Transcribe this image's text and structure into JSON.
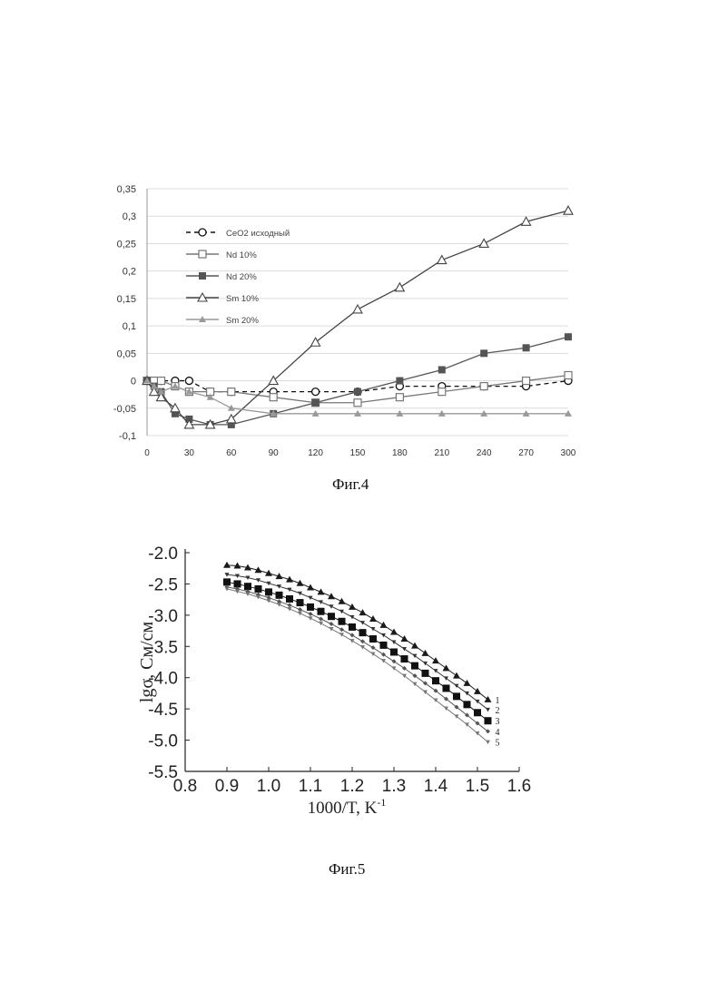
{
  "chart_data": [
    {
      "type": "line",
      "caption": "Фиг.4",
      "x": [
        0,
        5,
        10,
        20,
        30,
        45,
        60,
        90,
        120,
        150,
        180,
        210,
        240,
        270,
        300
      ],
      "x_ticks": [
        "0",
        "30",
        "60",
        "90",
        "120",
        "150",
        "180",
        "210",
        "240",
        "270",
        "300"
      ],
      "x_tick_values": [
        0,
        30,
        60,
        90,
        120,
        150,
        180,
        210,
        240,
        270,
        300
      ],
      "y_ticks": [
        "0,35",
        "0,3",
        "0,25",
        "0,2",
        "0,15",
        "0,1",
        "0,05",
        "0",
        "-0,05",
        "-0,1"
      ],
      "y_tick_values": [
        0.35,
        0.3,
        0.25,
        0.2,
        0.15,
        0.1,
        0.05,
        0,
        -0.05,
        -0.1
      ],
      "xlim": [
        0,
        300
      ],
      "ylim": [
        -0.1,
        0.35
      ],
      "grid": "horizontal",
      "legend_position": "top-left",
      "series": [
        {
          "name": "CeO2 исходный",
          "color": "#111111",
          "dashed": true,
          "marker": "circle-open",
          "x": [
            0,
            5,
            10,
            20,
            30,
            45,
            60,
            90,
            120,
            150,
            180,
            210,
            240,
            270,
            300
          ],
          "values": [
            0,
            0,
            0,
            0,
            0,
            -0.02,
            -0.02,
            -0.02,
            -0.02,
            -0.02,
            -0.01,
            -0.01,
            -0.01,
            -0.01,
            0
          ]
        },
        {
          "name": "Nd 10%",
          "color": "#777777",
          "dashed": false,
          "marker": "square-open",
          "x": [
            0,
            5,
            10,
            20,
            30,
            45,
            60,
            90,
            120,
            150,
            180,
            210,
            240,
            270,
            300
          ],
          "values": [
            0,
            0,
            0,
            -0.01,
            -0.02,
            -0.02,
            -0.02,
            -0.03,
            -0.04,
            -0.04,
            -0.03,
            -0.02,
            -0.01,
            0,
            0.01
          ]
        },
        {
          "name": "Nd 20%",
          "color": "#555555",
          "dashed": false,
          "marker": "square-filled",
          "x": [
            0,
            5,
            10,
            20,
            30,
            45,
            60,
            90,
            120,
            150,
            180,
            210,
            240,
            270,
            300
          ],
          "values": [
            0,
            -0.01,
            -0.02,
            -0.06,
            -0.07,
            -0.08,
            -0.08,
            -0.06,
            -0.04,
            -0.02,
            0,
            0.02,
            0.05,
            0.06,
            0.08
          ]
        },
        {
          "name": "Sm 10%",
          "color": "#444444",
          "dashed": false,
          "marker": "triangle-open",
          "x": [
            0,
            5,
            10,
            20,
            30,
            45,
            60,
            90,
            120,
            150,
            180,
            210,
            240,
            270,
            300
          ],
          "values": [
            0,
            -0.02,
            -0.03,
            -0.05,
            -0.08,
            -0.08,
            -0.07,
            0,
            0.07,
            0.13,
            0.17,
            0.22,
            0.25,
            0.29,
            0.31
          ]
        },
        {
          "name": "Sm 20%",
          "color": "#999999",
          "dashed": false,
          "marker": "triangle-filled",
          "x": [
            0,
            5,
            10,
            20,
            30,
            45,
            60,
            90,
            120,
            150,
            180,
            210,
            240,
            270,
            300
          ],
          "values": [
            0,
            -0.01,
            -0.02,
            -0.01,
            -0.02,
            -0.03,
            -0.05,
            -0.06,
            -0.06,
            -0.06,
            -0.06,
            -0.06,
            -0.06,
            -0.06,
            -0.06
          ]
        }
      ]
    },
    {
      "type": "line",
      "caption": "Фиг.5",
      "xlabel": "1000/T, K",
      "xlabel_sup": "-1",
      "ylabel": "lgσ, См/см",
      "x_ticks": [
        "0.8",
        "0.9",
        "1.0",
        "1.1",
        "1.2",
        "1.3",
        "1.4",
        "1.5",
        "1.6"
      ],
      "x_tick_values": [
        0.8,
        0.9,
        1.0,
        1.1,
        1.2,
        1.3,
        1.4,
        1.5,
        1.6
      ],
      "y_ticks": [
        "-2.0",
        "-2.5",
        "-3.0",
        "-3.5",
        "-4.0",
        "-4.5",
        "-5.0",
        "-5.5"
      ],
      "y_tick_values": [
        -2.0,
        -2.5,
        -3.0,
        -3.5,
        -4.0,
        -4.5,
        -5.0,
        -5.5
      ],
      "xlim": [
        0.8,
        1.6
      ],
      "ylim": [
        -5.5,
        -2.0
      ],
      "series": [
        {
          "name": "1",
          "color": "#1a1a1a",
          "marker": "triangle-filled",
          "x": [
            0.9,
            0.925,
            0.95,
            0.975,
            1.0,
            1.025,
            1.05,
            1.075,
            1.1,
            1.125,
            1.15,
            1.175,
            1.2,
            1.225,
            1.25,
            1.275,
            1.3,
            1.325,
            1.35,
            1.375,
            1.4,
            1.425,
            1.45,
            1.475,
            1.5,
            1.525
          ],
          "values": [
            -2.2,
            -2.21,
            -2.24,
            -2.28,
            -2.33,
            -2.38,
            -2.43,
            -2.49,
            -2.56,
            -2.63,
            -2.7,
            -2.78,
            -2.87,
            -2.96,
            -3.06,
            -3.16,
            -3.27,
            -3.38,
            -3.49,
            -3.61,
            -3.73,
            -3.85,
            -3.97,
            -4.09,
            -4.22,
            -4.35
          ]
        },
        {
          "name": "2",
          "color": "#333333",
          "marker": "triangle-down-filled",
          "x": [
            0.9,
            0.925,
            0.95,
            0.975,
            1.0,
            1.025,
            1.05,
            1.075,
            1.1,
            1.125,
            1.15,
            1.175,
            1.2,
            1.225,
            1.25,
            1.275,
            1.3,
            1.325,
            1.35,
            1.375,
            1.4,
            1.425,
            1.45,
            1.475,
            1.5,
            1.525
          ],
          "values": [
            -2.35,
            -2.37,
            -2.4,
            -2.44,
            -2.49,
            -2.54,
            -2.59,
            -2.65,
            -2.72,
            -2.79,
            -2.86,
            -2.94,
            -3.03,
            -3.12,
            -3.22,
            -3.32,
            -3.43,
            -3.54,
            -3.65,
            -3.77,
            -3.89,
            -4.01,
            -4.13,
            -4.25,
            -4.38,
            -4.51
          ]
        },
        {
          "name": "3",
          "color": "#111111",
          "marker": "square-filled",
          "x": [
            0.9,
            0.925,
            0.95,
            0.975,
            1.0,
            1.025,
            1.05,
            1.075,
            1.1,
            1.125,
            1.15,
            1.175,
            1.2,
            1.225,
            1.25,
            1.275,
            1.3,
            1.325,
            1.35,
            1.375,
            1.4,
            1.425,
            1.45,
            1.475,
            1.5,
            1.525
          ],
          "values": [
            -2.47,
            -2.5,
            -2.54,
            -2.58,
            -2.63,
            -2.68,
            -2.74,
            -2.8,
            -2.87,
            -2.94,
            -3.02,
            -3.1,
            -3.19,
            -3.28,
            -3.38,
            -3.48,
            -3.59,
            -3.7,
            -3.81,
            -3.93,
            -4.05,
            -4.17,
            -4.3,
            -4.43,
            -4.56,
            -4.69
          ]
        },
        {
          "name": "4",
          "color": "#555555",
          "marker": "diamond-filled",
          "x": [
            0.9,
            0.925,
            0.95,
            0.975,
            1.0,
            1.025,
            1.05,
            1.075,
            1.1,
            1.125,
            1.15,
            1.175,
            1.2,
            1.225,
            1.25,
            1.275,
            1.3,
            1.325,
            1.35,
            1.375,
            1.4,
            1.425,
            1.45,
            1.475,
            1.5,
            1.525
          ],
          "values": [
            -2.55,
            -2.58,
            -2.62,
            -2.67,
            -2.72,
            -2.78,
            -2.84,
            -2.91,
            -2.98,
            -3.06,
            -3.14,
            -3.23,
            -3.32,
            -3.42,
            -3.52,
            -3.63,
            -3.74,
            -3.85,
            -3.97,
            -4.09,
            -4.21,
            -4.34,
            -4.47,
            -4.6,
            -4.73,
            -4.86
          ]
        },
        {
          "name": "5",
          "color": "#777777",
          "marker": "triangle-down-filled",
          "x": [
            0.9,
            0.925,
            0.95,
            0.975,
            1.0,
            1.025,
            1.05,
            1.075,
            1.1,
            1.125,
            1.15,
            1.175,
            1.2,
            1.225,
            1.25,
            1.275,
            1.3,
            1.325,
            1.35,
            1.375,
            1.4,
            1.425,
            1.45,
            1.475,
            1.5,
            1.525
          ],
          "values": [
            -2.58,
            -2.62,
            -2.66,
            -2.71,
            -2.77,
            -2.83,
            -2.9,
            -2.97,
            -3.05,
            -3.13,
            -3.22,
            -3.31,
            -3.41,
            -3.51,
            -3.62,
            -3.73,
            -3.85,
            -3.97,
            -4.1,
            -4.23,
            -4.36,
            -4.49,
            -4.62,
            -4.75,
            -4.89,
            -5.03
          ]
        }
      ]
    }
  ]
}
